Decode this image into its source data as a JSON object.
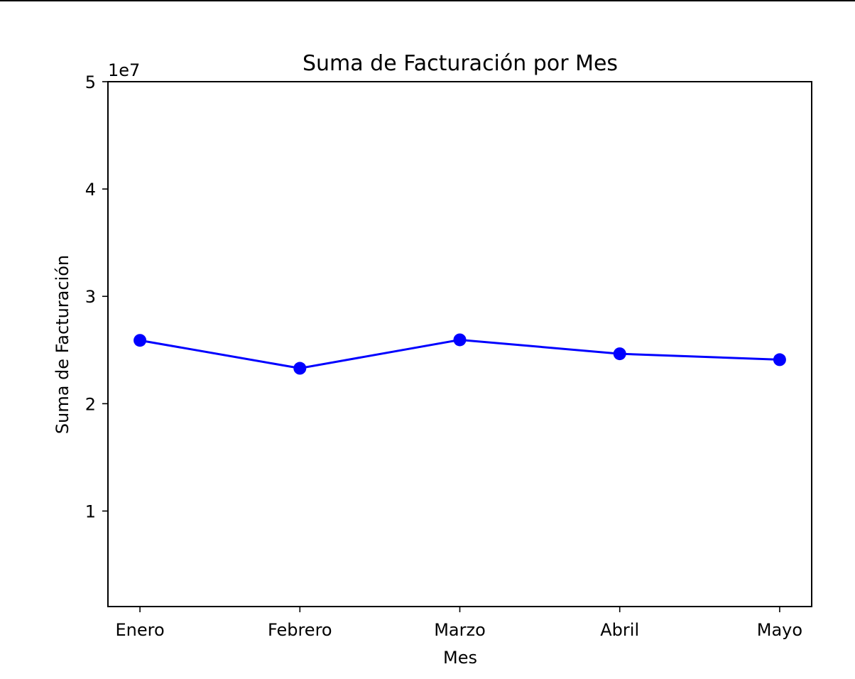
{
  "chart_data": {
    "type": "line",
    "title": "Suma de Facturación por Mes",
    "xlabel": "Mes",
    "ylabel": "Suma de Facturación",
    "categories": [
      "Enero",
      "Febrero",
      "Marzo",
      "Abril",
      "Mayo"
    ],
    "series": [
      {
        "values": [
          25900000,
          23300000,
          25950000,
          24650000,
          24100000
        ]
      }
    ],
    "ylim": [
      1100000,
      50000000
    ],
    "yticks": [
      10000000,
      20000000,
      30000000,
      40000000,
      50000000
    ],
    "ytick_labels": [
      "1",
      "2",
      "3",
      "4",
      "5"
    ],
    "offset_label": "1e7",
    "grid": false,
    "colors": {
      "line": "#0000ff",
      "marker": "#0000ff",
      "axes": "#000000"
    }
  }
}
